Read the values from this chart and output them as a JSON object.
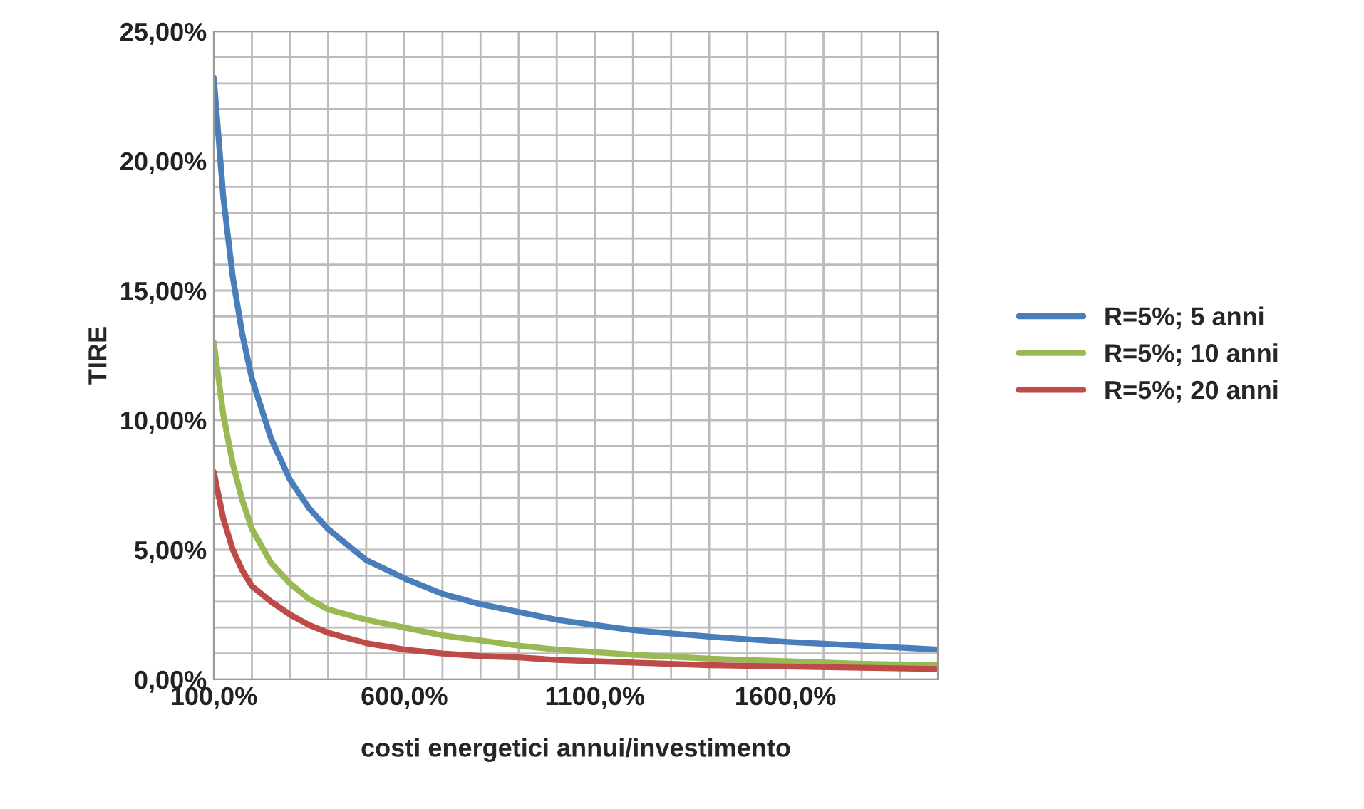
{
  "chart_data": {
    "type": "line",
    "xlabel": "costi energetici annui/investimento",
    "ylabel": "TIRE",
    "x": [
      100,
      125,
      150,
      175,
      200,
      250,
      300,
      350,
      400,
      500,
      600,
      700,
      800,
      900,
      1000,
      1100,
      1200,
      1400,
      1600,
      1800,
      2000
    ],
    "series": [
      {
        "name": "R=5%; 5 anni",
        "color": "#4a7ebb",
        "values": [
          23.2,
          18.6,
          15.5,
          13.3,
          11.6,
          9.3,
          7.7,
          6.6,
          5.8,
          4.6,
          3.9,
          3.3,
          2.9,
          2.6,
          2.3,
          2.1,
          1.9,
          1.65,
          1.45,
          1.3,
          1.15
        ]
      },
      {
        "name": "R=5%; 10 anni",
        "color": "#98b954",
        "values": [
          13.0,
          10.2,
          8.3,
          6.9,
          5.8,
          4.5,
          3.7,
          3.1,
          2.7,
          2.3,
          2.0,
          1.7,
          1.5,
          1.3,
          1.15,
          1.05,
          0.95,
          0.8,
          0.7,
          0.6,
          0.55
        ]
      },
      {
        "name": "R=5%; 20 anni",
        "color": "#be4b48",
        "values": [
          8.0,
          6.2,
          5.0,
          4.2,
          3.6,
          3.0,
          2.5,
          2.1,
          1.8,
          1.4,
          1.15,
          1.0,
          0.9,
          0.85,
          0.75,
          0.7,
          0.65,
          0.55,
          0.5,
          0.45,
          0.4
        ]
      }
    ],
    "xlim": [
      100,
      2000
    ],
    "xticks": [
      {
        "value": 100,
        "label": "100,0%"
      },
      {
        "value": 200,
        "label": null
      },
      {
        "value": 300,
        "label": null
      },
      {
        "value": 400,
        "label": null
      },
      {
        "value": 500,
        "label": null
      },
      {
        "value": 600,
        "label": "600,0%"
      },
      {
        "value": 700,
        "label": null
      },
      {
        "value": 800,
        "label": null
      },
      {
        "value": 900,
        "label": null
      },
      {
        "value": 1000,
        "label": null
      },
      {
        "value": 1100,
        "label": "1100,0%"
      },
      {
        "value": 1200,
        "label": null
      },
      {
        "value": 1300,
        "label": null
      },
      {
        "value": 1400,
        "label": null
      },
      {
        "value": 1500,
        "label": null
      },
      {
        "value": 1600,
        "label": "1600,0%"
      },
      {
        "value": 1700,
        "label": null
      },
      {
        "value": 1800,
        "label": null
      },
      {
        "value": 1900,
        "label": null
      }
    ],
    "ylim": [
      0,
      25
    ],
    "yticks": [
      {
        "value": 0,
        "label": "0,00%"
      },
      {
        "value": 1,
        "label": null
      },
      {
        "value": 2,
        "label": null
      },
      {
        "value": 3,
        "label": null
      },
      {
        "value": 4,
        "label": null
      },
      {
        "value": 5,
        "label": "5,00%"
      },
      {
        "value": 6,
        "label": null
      },
      {
        "value": 7,
        "label": null
      },
      {
        "value": 8,
        "label": null
      },
      {
        "value": 9,
        "label": null
      },
      {
        "value": 10,
        "label": "10,00%"
      },
      {
        "value": 11,
        "label": null
      },
      {
        "value": 12,
        "label": null
      },
      {
        "value": 13,
        "label": null
      },
      {
        "value": 14,
        "label": null
      },
      {
        "value": 15,
        "label": "15,00%"
      },
      {
        "value": 16,
        "label": null
      },
      {
        "value": 17,
        "label": null
      },
      {
        "value": 18,
        "label": null
      },
      {
        "value": 19,
        "label": null
      },
      {
        "value": 20,
        "label": "20,00%"
      },
      {
        "value": 21,
        "label": null
      },
      {
        "value": 22,
        "label": null
      },
      {
        "value": 23,
        "label": null
      },
      {
        "value": 24,
        "label": null
      },
      {
        "value": 25,
        "label": "25,00%"
      }
    ],
    "grid": true,
    "legend": "right",
    "marker": "none",
    "line_style": "solid"
  }
}
